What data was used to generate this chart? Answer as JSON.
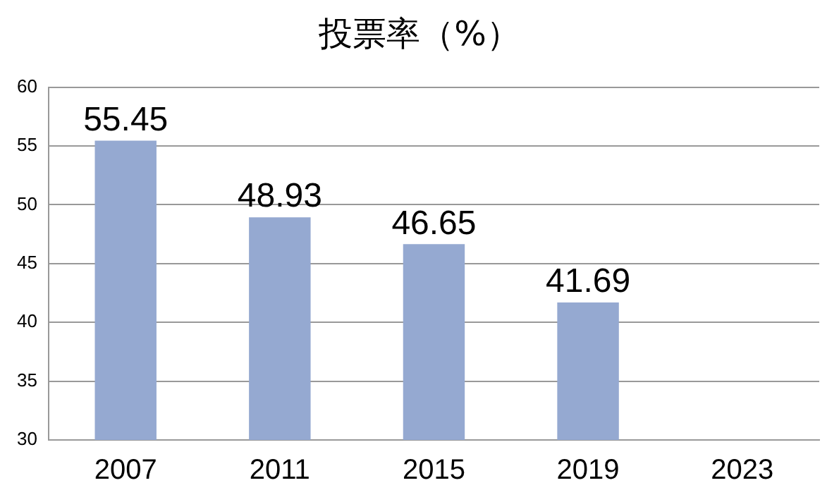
{
  "chart_data": {
    "type": "bar",
    "title": "投票率（%）",
    "categories": [
      "2007",
      "2011",
      "2015",
      "2019",
      "2023"
    ],
    "values": [
      55.45,
      48.93,
      46.65,
      41.69,
      null
    ],
    "color": "#95a9d1",
    "ylim": [
      30,
      60
    ],
    "yticks": [
      30,
      35,
      40,
      45,
      50,
      55,
      60
    ],
    "grid": "y",
    "legend": false,
    "data_labels": true
  }
}
